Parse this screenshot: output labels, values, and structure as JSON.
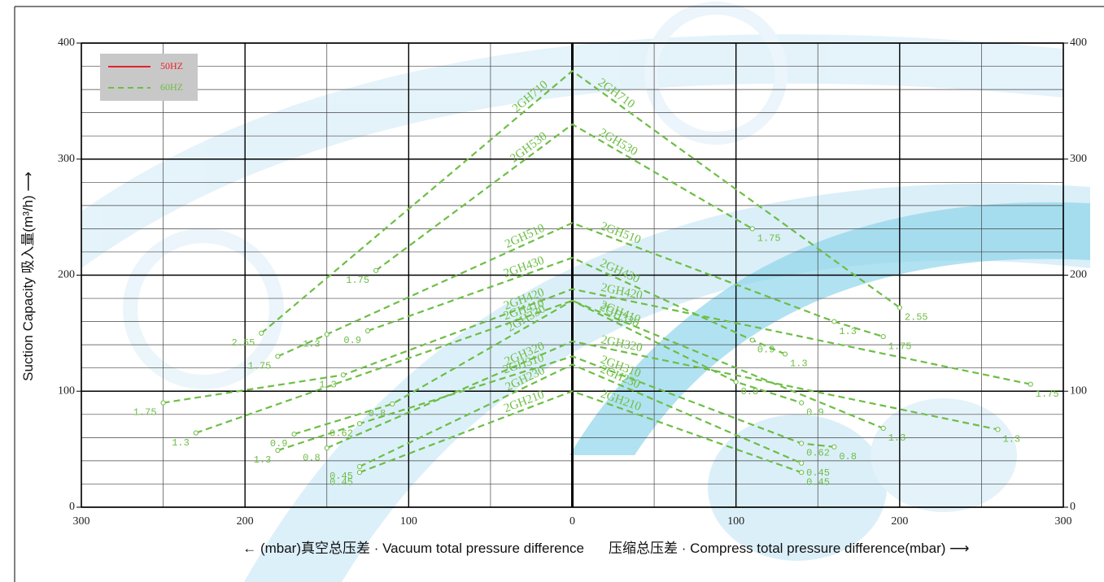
{
  "chart_data": {
    "type": "line",
    "x_label_left": "← (mbar)真空总压差 · Vacuum total pressure difference",
    "x_label_right": "压缩总压差 · Compress total pressure difference(mbar) ⟶",
    "y_label": "Suction Capacity 吸入量(m³/h) ⟶",
    "xlim": [
      -300,
      300
    ],
    "xticks": [
      {
        "value": -300,
        "label": "300"
      },
      {
        "value": -200,
        "label": "200"
      },
      {
        "value": -100,
        "label": "100"
      },
      0,
      100,
      200,
      300
    ],
    "ylim": [
      0,
      400
    ],
    "yticks": [
      0,
      100,
      200,
      300,
      400
    ],
    "y2lim": [
      0,
      400
    ],
    "y2ticks": [
      0,
      100,
      200,
      300,
      400
    ],
    "grid": true,
    "legend_position": "upper left",
    "legend": [
      {
        "name": "50HZ",
        "color": "#e8202a",
        "dashed": false
      },
      {
        "name": "60HZ",
        "color": "#6dbe45",
        "dashed": true
      }
    ],
    "series": [
      {
        "name": "2GH710",
        "color": "#6dbe45",
        "dashed": true,
        "x": [
          -190,
          0,
          200
        ],
        "values": [
          150,
          376,
          172
        ],
        "power_labels": [
          "2.55",
          null,
          "2.55"
        ]
      },
      {
        "name": "2GH530",
        "color": "#6dbe45",
        "dashed": true,
        "x": [
          -120,
          0,
          110
        ],
        "values": [
          204,
          330,
          240
        ],
        "power_labels": [
          "1.75",
          null,
          "1.75"
        ]
      },
      {
        "name": "2GH510",
        "color": "#6dbe45",
        "dashed": true,
        "x": [
          -180,
          -150,
          0,
          160,
          190
        ],
        "values": [
          130,
          149,
          245,
          160,
          147
        ],
        "power_labels": [
          "1.75",
          "1.3",
          null,
          "1.3",
          "1.75"
        ]
      },
      {
        "name": "2GH430",
        "color": "#6dbe45",
        "dashed": true,
        "x": [
          -125,
          0,
          110,
          130
        ],
        "values": [
          152,
          215,
          144,
          132
        ],
        "power_labels": [
          "0.9",
          null,
          "0.9",
          "1.3"
        ]
      },
      {
        "name": "2GH420",
        "color": "#6dbe45",
        "dashed": true,
        "x": [
          -250,
          -140,
          0,
          280
        ],
        "values": [
          90,
          114,
          188,
          106
        ],
        "power_labels": [
          "1.75",
          "1.3",
          null,
          "1.75"
        ]
      },
      {
        "name": "2GH410",
        "color": "#6dbe45",
        "dashed": true,
        "x": [
          -230,
          0,
          190
        ],
        "values": [
          64,
          178,
          68
        ],
        "power_labels": [
          "1.3",
          null,
          "1.3"
        ]
      },
      {
        "name": "2GH330",
        "color": "#6dbe45",
        "dashed": true,
        "x": [
          -170,
          -110,
          0,
          100,
          140
        ],
        "values": [
          63,
          89,
          178,
          108,
          90
        ],
        "power_labels": [
          "0.9",
          "0.8",
          null,
          "0.8",
          "0.9"
        ]
      },
      {
        "name": "2GH320",
        "color": "#6dbe45",
        "dashed": true,
        "x": [
          -150,
          0,
          260
        ],
        "values": [
          51,
          143,
          67
        ],
        "power_labels": [
          "0.8",
          null,
          "1.3"
        ]
      },
      {
        "name": "2GH310",
        "color": "#6dbe45",
        "dashed": true,
        "x": [
          -180,
          -130,
          0,
          140,
          160
        ],
        "values": [
          49,
          72,
          130,
          55,
          52
        ],
        "power_labels": [
          "1.3",
          "0.62",
          null,
          "0.62",
          "0.8"
        ]
      },
      {
        "name": "2GH230",
        "color": "#6dbe45",
        "dashed": true,
        "x": [
          -130,
          0,
          140
        ],
        "values": [
          35,
          123,
          38
        ],
        "power_labels": [
          "0.45",
          null,
          "0.45"
        ]
      },
      {
        "name": "2GH210",
        "color": "#6dbe45",
        "dashed": true,
        "x": [
          -130,
          0,
          140
        ],
        "values": [
          30,
          100,
          30
        ],
        "power_labels": [
          "0.45",
          null,
          "0.45"
        ]
      }
    ]
  }
}
